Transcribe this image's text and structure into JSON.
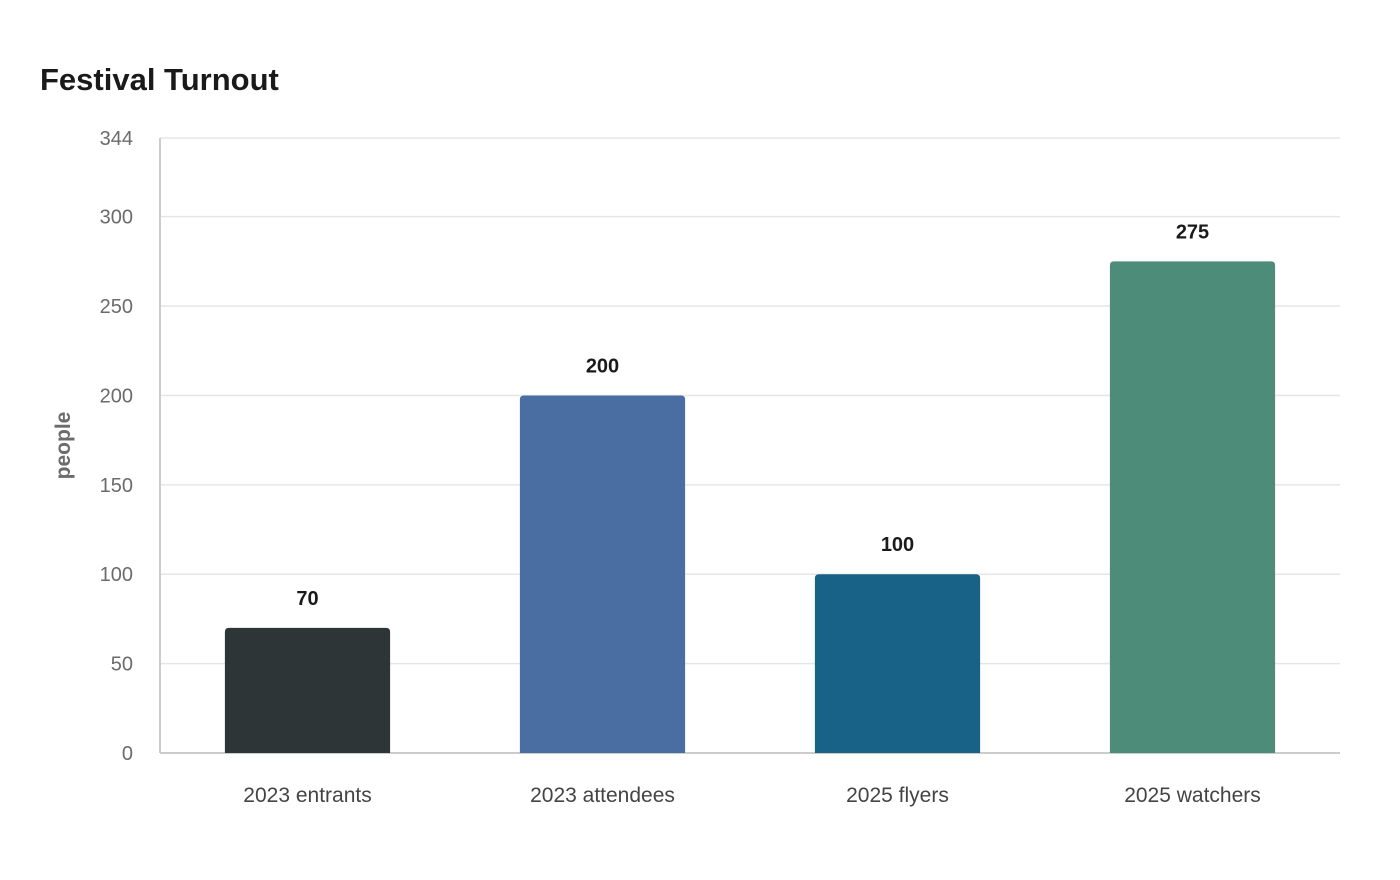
{
  "chart_data": {
    "type": "bar",
    "title": "Festival Turnout",
    "xlabel": "",
    "ylabel": "people",
    "categories": [
      "2023 entrants",
      "2023 attendees",
      "2025 flyers",
      "2025 watchers"
    ],
    "values": [
      70,
      200,
      100,
      275
    ],
    "data_labels": [
      "70",
      "200",
      "100",
      "275"
    ],
    "colors": [
      "#2d3537",
      "#4a6ea2",
      "#196287",
      "#4e8c7a"
    ],
    "ylim": [
      0,
      344
    ],
    "yticks": [
      0,
      50,
      100,
      150,
      200,
      250,
      300,
      344
    ],
    "grid": true,
    "legend": "none"
  }
}
